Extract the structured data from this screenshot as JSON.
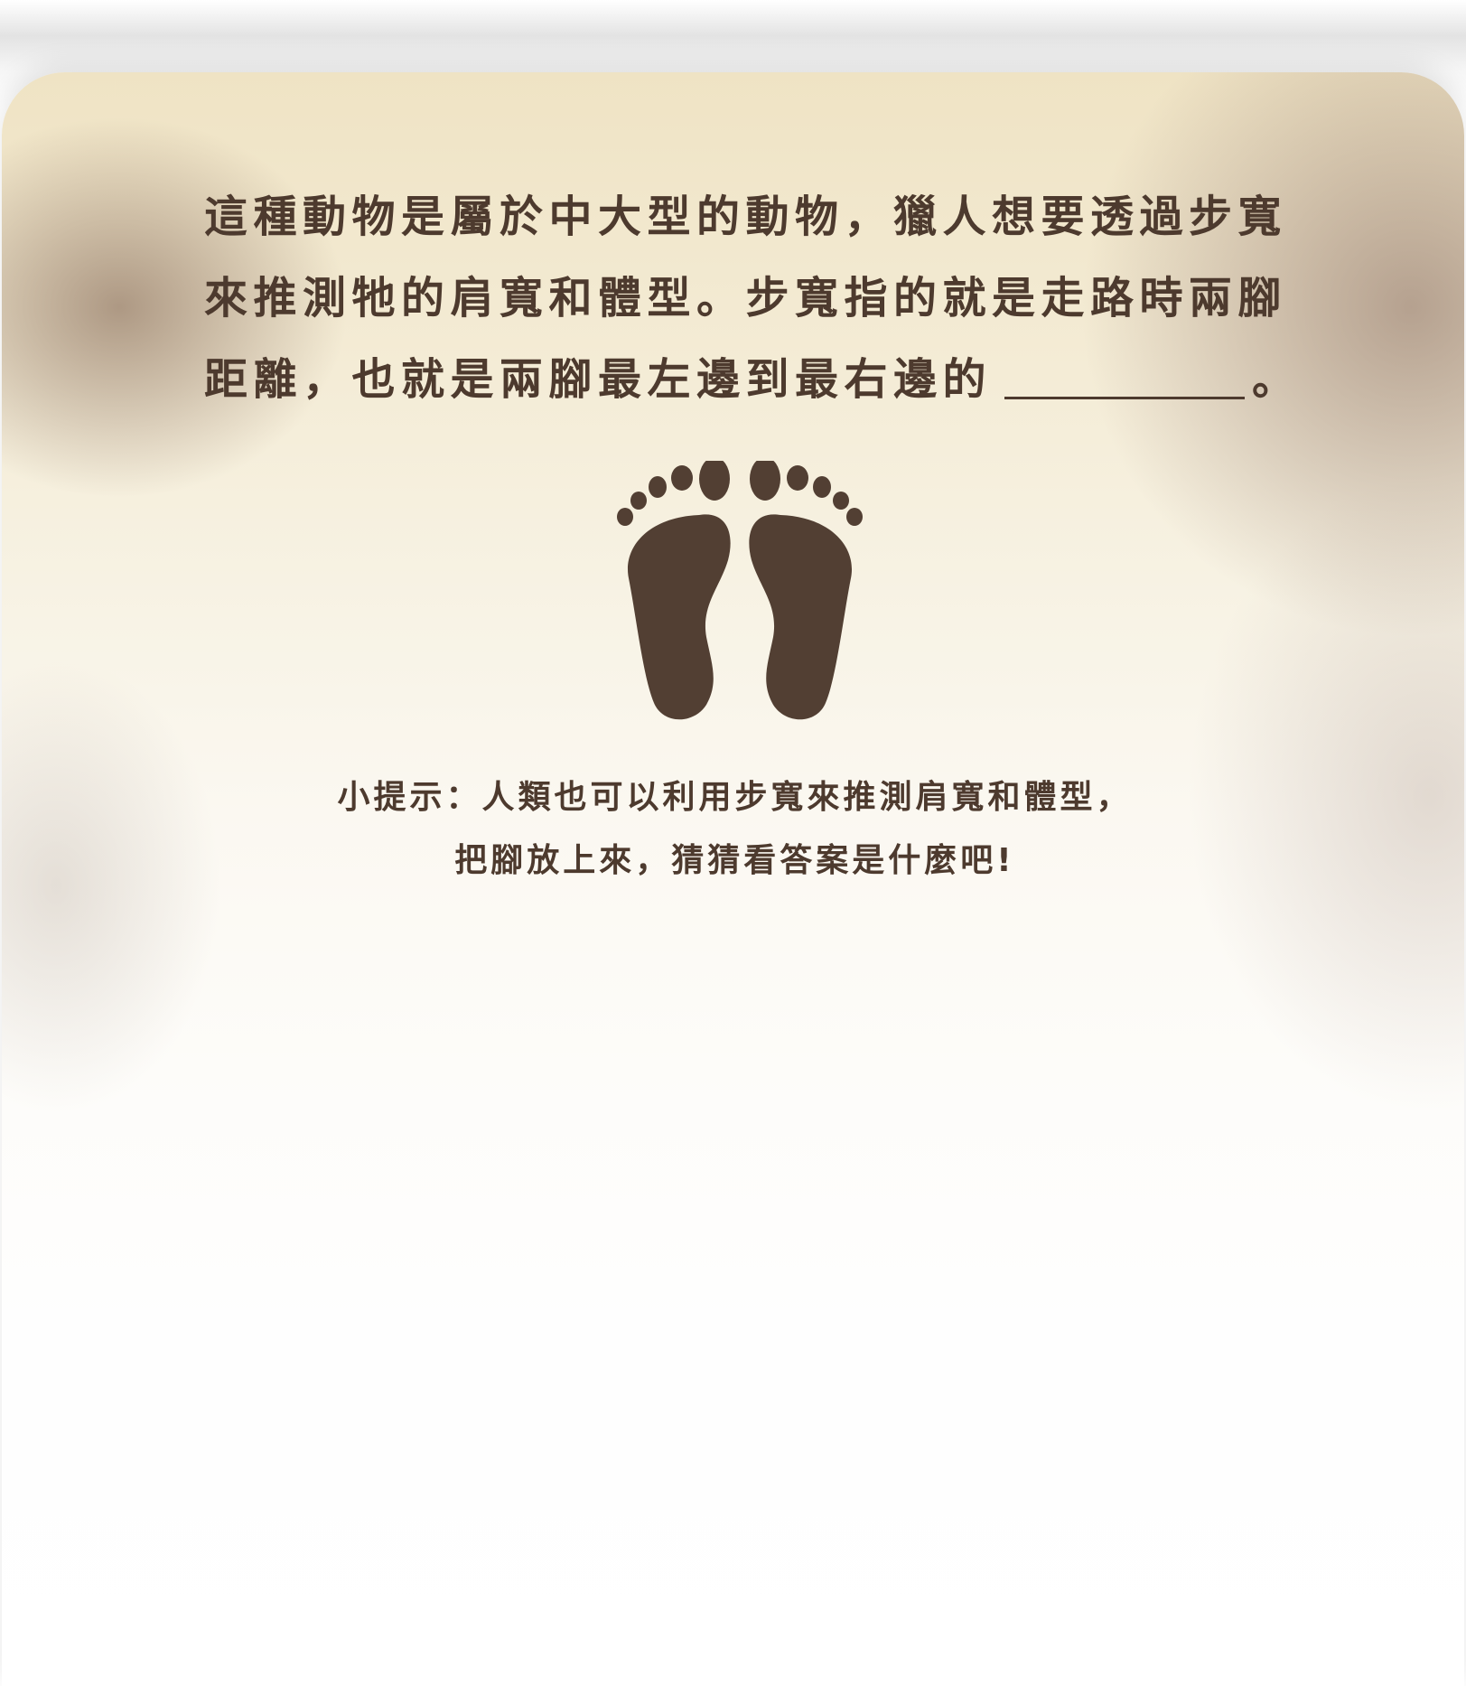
{
  "question": {
    "line1": "這種動物是屬於中大型的動物，獵人想要透過步寬",
    "line2": "來推測牠的肩寬和體型。步寬指的就是走路時兩腳",
    "line3": "距離，也就是兩腳最左邊到最右邊的",
    "line3_end": "。"
  },
  "feet_icon": "footprints-icon",
  "hint": {
    "line1": "小提示：人類也可以利用步寬來推測肩寬和體型，",
    "line2": "把腳放上來，猜猜看答案是什麼吧!"
  },
  "colors": {
    "text": "#4d3a2e",
    "foot": "#523f33"
  }
}
